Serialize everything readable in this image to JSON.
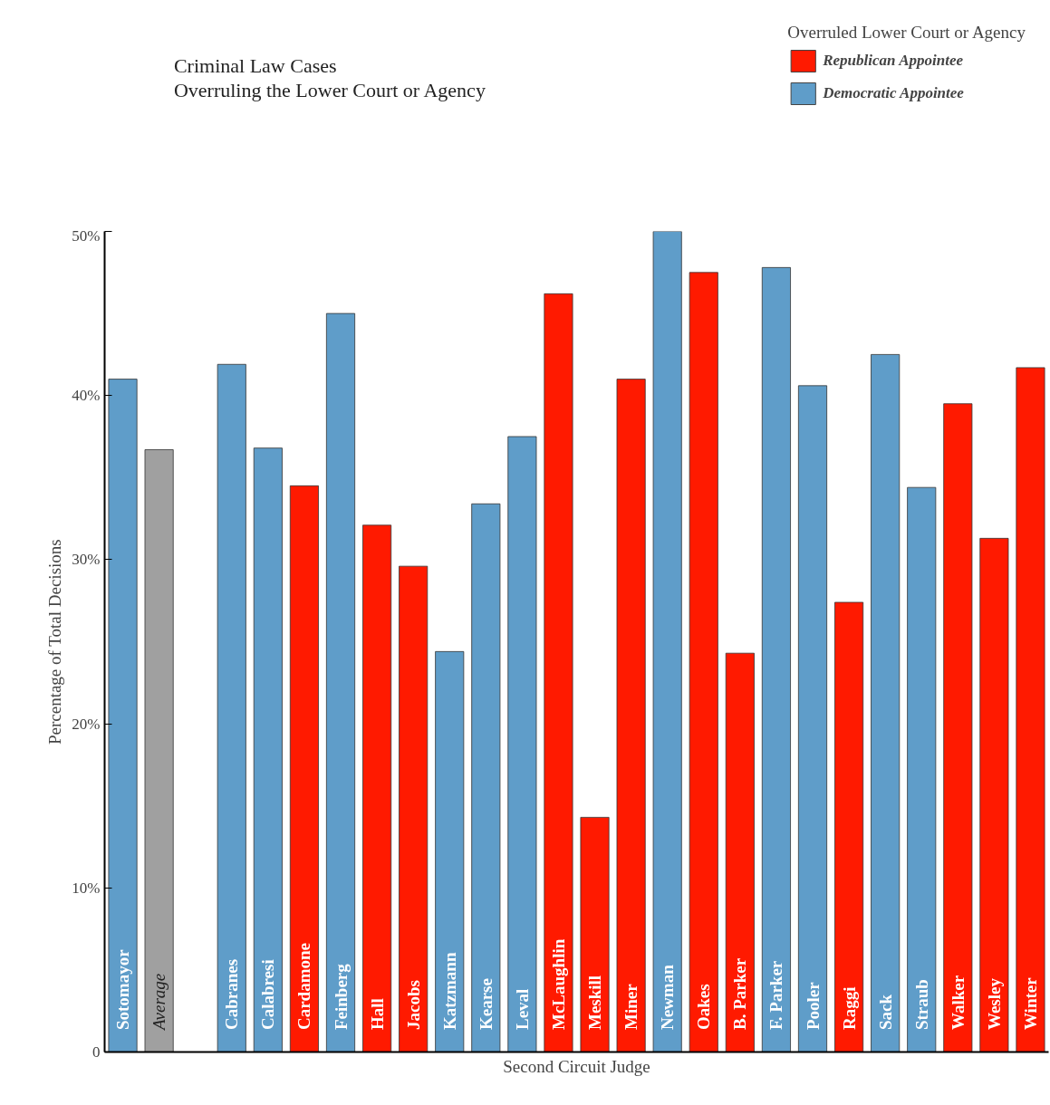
{
  "chart_data": {
    "type": "bar",
    "title": "Criminal Law Cases\nOverruling the Lower Court or Agency",
    "xlabel": "Second Circuit Judge",
    "ylabel": "Percentage of Total Decisions",
    "legend_title": "Overruled Lower Court or Agency",
    "legend": "top right",
    "grid": false,
    "categories": [
      "Sotomayor",
      "Average",
      null,
      "Cabranes",
      "Calabresi",
      "Cardamone",
      "Feinberg",
      "Hall",
      "Jacobs",
      "Katzmann",
      "Kearse",
      "Leval",
      "McLaughlin",
      "Meskill",
      "Miner",
      "Newman",
      "Oakes",
      "B. Parker",
      "F. Parker",
      "Pooler",
      "Raggi",
      "Sack",
      "Straub",
      "Walker",
      "Wesley",
      "Winter"
    ],
    "series": [
      {
        "name": "Republican Appointee",
        "color": "#ff1a00",
        "values": [
          null,
          null,
          null,
          null,
          null,
          34.5,
          null,
          32.1,
          29.6,
          null,
          null,
          null,
          46.2,
          14.3,
          41.0,
          null,
          47.5,
          24.3,
          null,
          null,
          27.4,
          null,
          null,
          39.5,
          31.3,
          41.7
        ]
      },
      {
        "name": "Democratic Appointee",
        "color": "#5f9dc9",
        "values": [
          41.0,
          null,
          null,
          41.9,
          36.8,
          null,
          45.0,
          null,
          null,
          24.4,
          33.4,
          37.5,
          null,
          null,
          null,
          50.0,
          null,
          null,
          47.8,
          40.6,
          null,
          42.5,
          34.4,
          null,
          null,
          null
        ]
      },
      {
        "color": "#a0a0a0",
        "values": [
          null,
          36.7,
          null,
          null,
          null,
          null,
          null,
          null,
          null,
          null,
          null,
          null,
          null,
          null,
          null,
          null,
          null,
          null,
          null,
          null,
          null,
          null,
          null,
          null,
          null,
          null
        ]
      }
    ],
    "ylim": [
      0,
      50
    ],
    "yticks": [
      0,
      {
        "value": 10,
        "label": "10%"
      },
      {
        "value": 20,
        "label": "20%"
      },
      {
        "value": 30,
        "label": "30%"
      },
      {
        "value": 40,
        "label": "40%"
      },
      {
        "value": 50,
        "label": "50%"
      }
    ]
  }
}
